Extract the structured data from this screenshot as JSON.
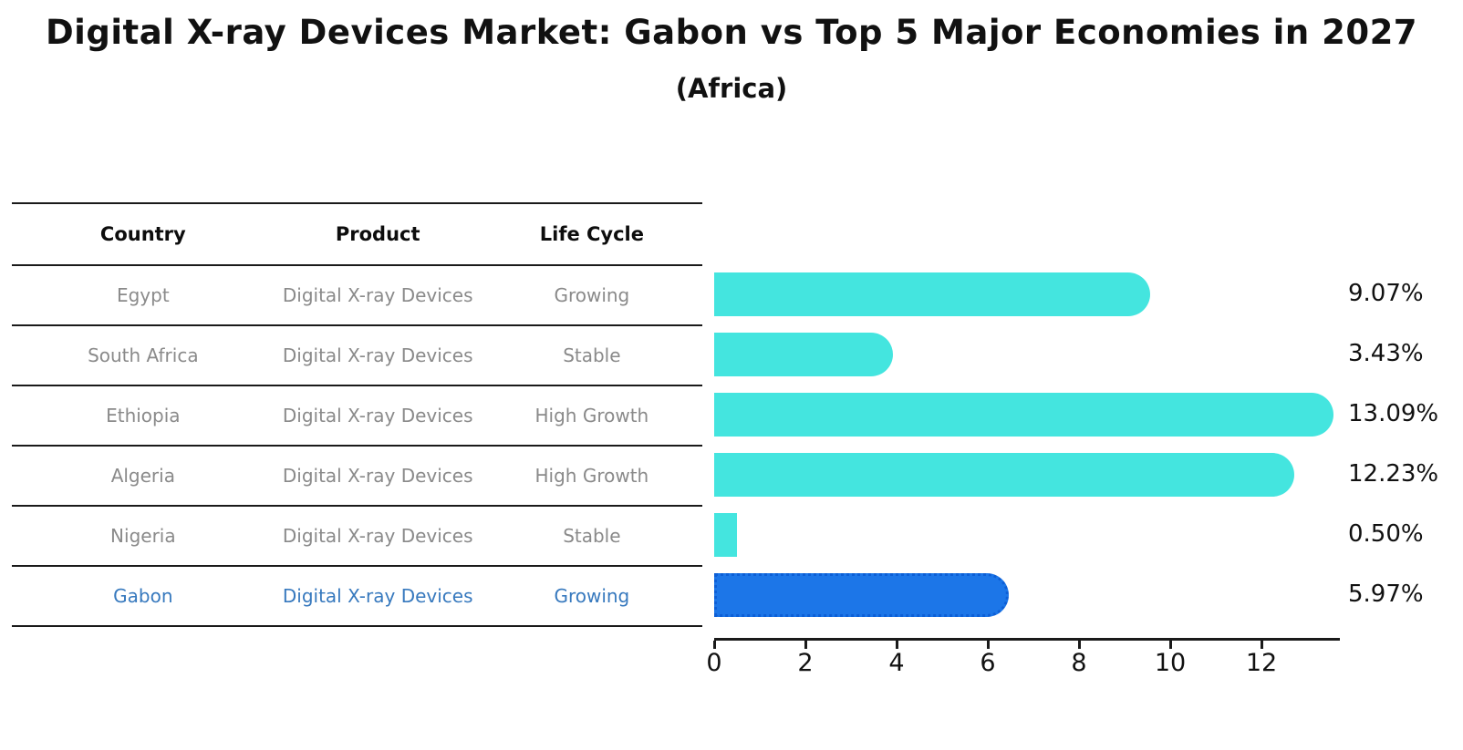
{
  "title": "Digital X-ray Devices Market: Gabon vs Top 5 Major Economies in 2027",
  "subtitle": "(Africa)",
  "table": {
    "headers": [
      "Country",
      "Product",
      "Life Cycle"
    ],
    "rows": [
      {
        "country": "Egypt",
        "product": "Digital X-ray Devices",
        "life_cycle": "Growing",
        "highlight": false
      },
      {
        "country": "South Africa",
        "product": "Digital X-ray Devices",
        "life_cycle": "Stable",
        "highlight": false
      },
      {
        "country": "Ethiopia",
        "product": "Digital X-ray Devices",
        "life_cycle": "High Growth",
        "highlight": false
      },
      {
        "country": "Algeria",
        "product": "Digital X-ray Devices",
        "life_cycle": "High Growth",
        "highlight": false
      },
      {
        "country": "Nigeria",
        "product": "Digital X-ray Devices",
        "life_cycle": "Stable",
        "highlight": false
      },
      {
        "country": "Gabon",
        "product": "Digital X-ray Devices",
        "life_cycle": "Growing",
        "highlight": true
      }
    ]
  },
  "chart_data": {
    "type": "bar",
    "orientation": "horizontal",
    "title": "Digital X-ray Devices Market: Gabon vs Top 5 Major Economies in 2027 (Africa)",
    "categories": [
      "Egypt",
      "South Africa",
      "Ethiopia",
      "Algeria",
      "Nigeria",
      "Gabon"
    ],
    "values": [
      9.07,
      3.43,
      13.09,
      12.23,
      0.5,
      5.97
    ],
    "value_labels": [
      "9.07%",
      "3.43%",
      "13.09%",
      "12.23%",
      "0.50%",
      "5.97%"
    ],
    "unit": "%",
    "x_ticks": [
      0,
      2,
      4,
      6,
      8,
      10,
      12
    ],
    "xlim": [
      0,
      13.7
    ],
    "grid": false,
    "legend": false,
    "highlight_index": 5,
    "colors": {
      "bar_default": "#44e5df",
      "bar_highlight": "#1c76e8",
      "bar_highlight_border": "#0d5fd6",
      "value_label_text": "#111111",
      "table_header_text": "#0d0d0d",
      "table_body_text": "#8a8a8a",
      "table_highlight_text": "#3779be"
    }
  }
}
